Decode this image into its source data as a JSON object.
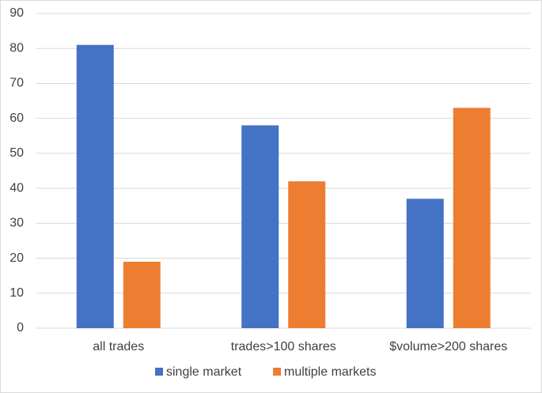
{
  "chart_data": {
    "type": "bar",
    "categories": [
      "all trades",
      "trades>100 shares",
      "$volume>200 shares"
    ],
    "series": [
      {
        "name": "single market",
        "color": "#4472c4",
        "values": [
          81,
          58,
          37
        ]
      },
      {
        "name": "multiple markets",
        "color": "#ed7d31",
        "values": [
          19,
          42,
          63
        ]
      }
    ],
    "ylim": [
      0,
      90
    ],
    "yticks": [
      0,
      10,
      20,
      30,
      40,
      50,
      60,
      70,
      80,
      90
    ],
    "grid": true,
    "legend": "bottom"
  }
}
